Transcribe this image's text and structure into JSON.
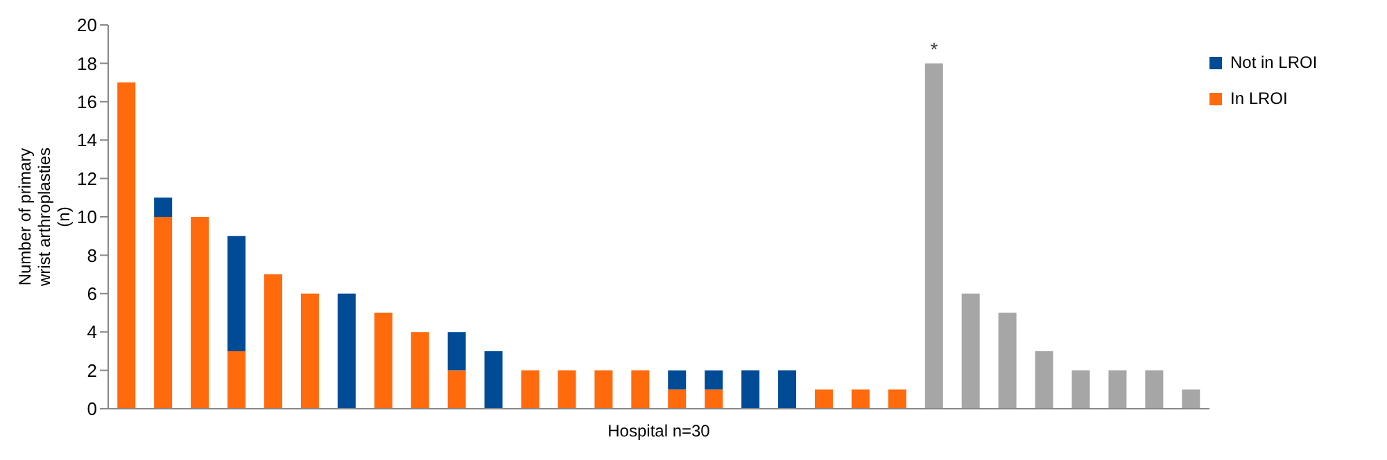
{
  "chart_data": {
    "type": "bar",
    "stacked": true,
    "xlabel": "Hospital n=30",
    "ylabel": "Number of primary wrist arthroplasties (n)",
    "categories": [
      null,
      null,
      null,
      null,
      null,
      null,
      null,
      null,
      null,
      null,
      null,
      null,
      null,
      null,
      null,
      null,
      null,
      null,
      null,
      null,
      null,
      null,
      null,
      null,
      null,
      null,
      null,
      null,
      null,
      null
    ],
    "series": [
      {
        "name": "In LROI",
        "color": "#ff6a0d",
        "values": [
          17,
          10,
          10,
          3,
          7,
          6,
          null,
          5,
          4,
          2,
          null,
          2,
          2,
          2,
          2,
          1,
          1,
          null,
          null,
          1,
          1,
          1,
          null,
          null,
          null,
          null,
          null,
          null,
          null,
          null
        ]
      },
      {
        "name": "Not in LROI",
        "color": "#004b96",
        "values": [
          null,
          1,
          null,
          6,
          null,
          null,
          6,
          null,
          null,
          2,
          3,
          null,
          null,
          null,
          null,
          1,
          1,
          2,
          2,
          null,
          null,
          null,
          null,
          null,
          null,
          null,
          null,
          null,
          null,
          null
        ]
      },
      {
        "color": "#a6a6a6",
        "values": [
          null,
          null,
          null,
          null,
          null,
          null,
          null,
          null,
          null,
          null,
          null,
          null,
          null,
          null,
          null,
          null,
          null,
          null,
          null,
          null,
          null,
          null,
          18,
          6,
          5,
          3,
          2,
          2,
          2,
          1
        ]
      }
    ],
    "ylim": [
      0,
      20
    ],
    "yticks": [
      0,
      2,
      4,
      6,
      8,
      10,
      12,
      14,
      16,
      18,
      20
    ],
    "grid": false,
    "legend": "top right",
    "annotations": [
      {
        "text": "*",
        "y": 18
      }
    ]
  }
}
